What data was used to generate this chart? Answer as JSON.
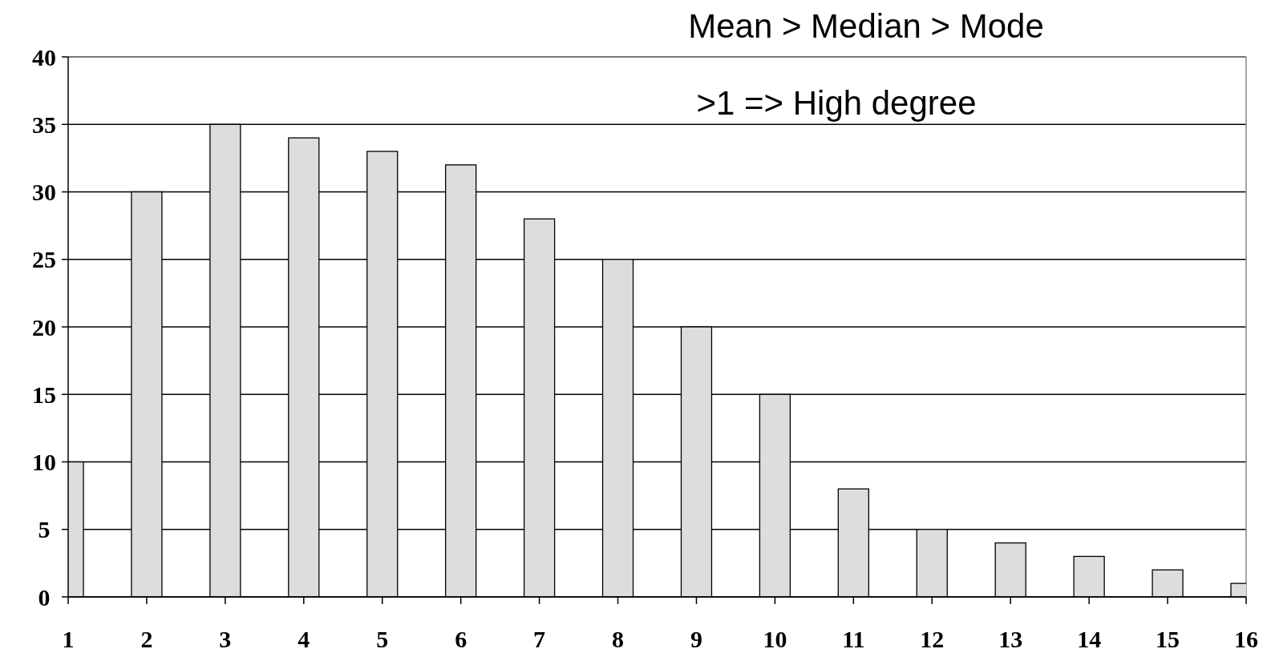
{
  "chart_data": {
    "type": "bar",
    "x": [
      1,
      2,
      3,
      4,
      5,
      6,
      7,
      8,
      9,
      10,
      11,
      12,
      13,
      14,
      15,
      16
    ],
    "values": [
      10,
      30,
      35,
      34,
      33,
      32,
      28,
      25,
      20,
      15,
      8,
      5,
      4,
      3,
      2,
      1
    ],
    "color": "#dddddd",
    "xlim": [
      1,
      16
    ],
    "xticks": [
      1,
      2,
      3,
      4,
      5,
      6,
      7,
      8,
      9,
      10,
      11,
      12,
      13,
      14,
      15,
      16
    ],
    "ylim": [
      0,
      40
    ],
    "yticks": [
      0,
      5,
      10,
      15,
      20,
      25,
      30,
      35,
      40
    ],
    "grid": "y",
    "annotations": [
      "Mean > Median > Mode",
      ">1 => High degree"
    ]
  }
}
